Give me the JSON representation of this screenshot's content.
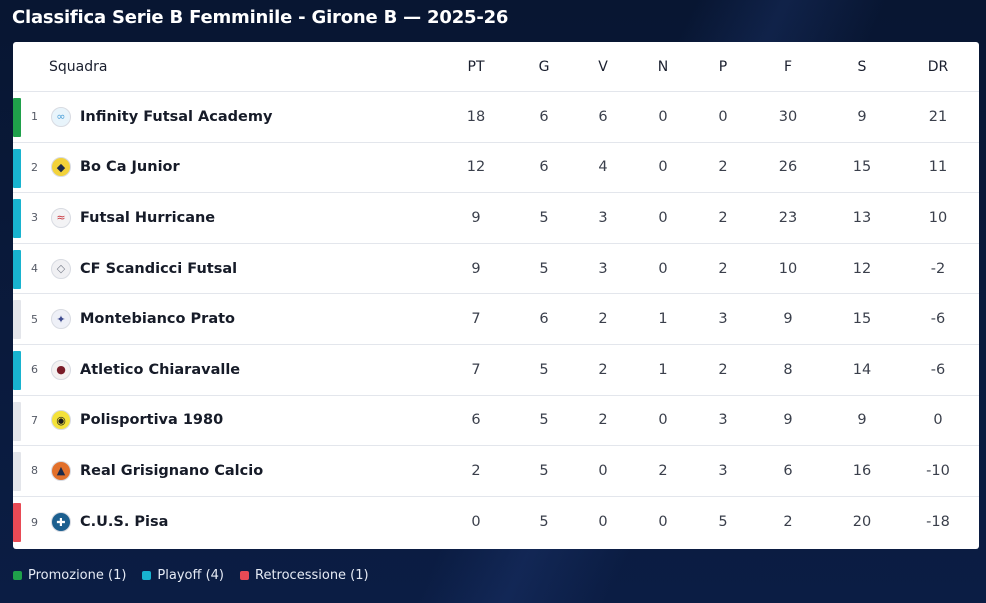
{
  "title": "Classifica Serie B Femminile - Girone B — 2025-26",
  "colors": {
    "promozione": "#1fa04a",
    "playoff": "#18b3cf",
    "retrocessione": "#e84a55",
    "none": "#e3e5ea"
  },
  "headers": {
    "squadra": "Squadra",
    "pt": "PT",
    "g": "G",
    "v": "V",
    "n": "N",
    "p": "P",
    "f": "F",
    "s": "S",
    "dr": "DR"
  },
  "rows": [
    {
      "pos": "1",
      "team": "Infinity Futsal Academy",
      "status": "promozione",
      "logo": "infinity-logo",
      "pt": "18",
      "g": "6",
      "v": "6",
      "n": "0",
      "p": "0",
      "f": "30",
      "s": "9",
      "dr": "21"
    },
    {
      "pos": "2",
      "team": "Bo Ca Junior",
      "status": "playoff",
      "logo": "boca-logo",
      "pt": "12",
      "g": "6",
      "v": "4",
      "n": "0",
      "p": "2",
      "f": "26",
      "s": "15",
      "dr": "11"
    },
    {
      "pos": "3",
      "team": "Futsal Hurricane",
      "status": "playoff",
      "logo": "hurricane-logo",
      "pt": "9",
      "g": "5",
      "v": "3",
      "n": "0",
      "p": "2",
      "f": "23",
      "s": "13",
      "dr": "10"
    },
    {
      "pos": "4",
      "team": "CF Scandicci Futsal",
      "status": "playoff",
      "logo": "scandicci-logo",
      "pt": "9",
      "g": "5",
      "v": "3",
      "n": "0",
      "p": "2",
      "f": "10",
      "s": "12",
      "dr": "-2"
    },
    {
      "pos": "5",
      "team": "Montebianco Prato",
      "status": "none",
      "logo": "montebianco-logo",
      "pt": "7",
      "g": "6",
      "v": "2",
      "n": "1",
      "p": "3",
      "f": "9",
      "s": "15",
      "dr": "-6"
    },
    {
      "pos": "6",
      "team": "Atletico Chiaravalle",
      "status": "playoff",
      "logo": "chiaravalle-logo",
      "pt": "7",
      "g": "5",
      "v": "2",
      "n": "1",
      "p": "2",
      "f": "8",
      "s": "14",
      "dr": "-6"
    },
    {
      "pos": "7",
      "team": "Polisportiva 1980",
      "status": "none",
      "logo": "polisportiva-logo",
      "pt": "6",
      "g": "5",
      "v": "2",
      "n": "0",
      "p": "3",
      "f": "9",
      "s": "9",
      "dr": "0"
    },
    {
      "pos": "8",
      "team": "Real Grisignano Calcio",
      "status": "none",
      "logo": "grisignano-logo",
      "pt": "2",
      "g": "5",
      "v": "0",
      "n": "2",
      "p": "3",
      "f": "6",
      "s": "16",
      "dr": "-10"
    },
    {
      "pos": "9",
      "team": "C.U.S. Pisa",
      "status": "retrocessione",
      "logo": "cus-pisa-logo",
      "pt": "0",
      "g": "5",
      "v": "0",
      "n": "0",
      "p": "5",
      "f": "2",
      "s": "20",
      "dr": "-18"
    }
  ],
  "legend": [
    {
      "label": "Promozione (1)",
      "status": "promozione"
    },
    {
      "label": "Playoff (4)",
      "status": "playoff"
    },
    {
      "label": "Retrocessione (1)",
      "status": "retrocessione"
    }
  ]
}
